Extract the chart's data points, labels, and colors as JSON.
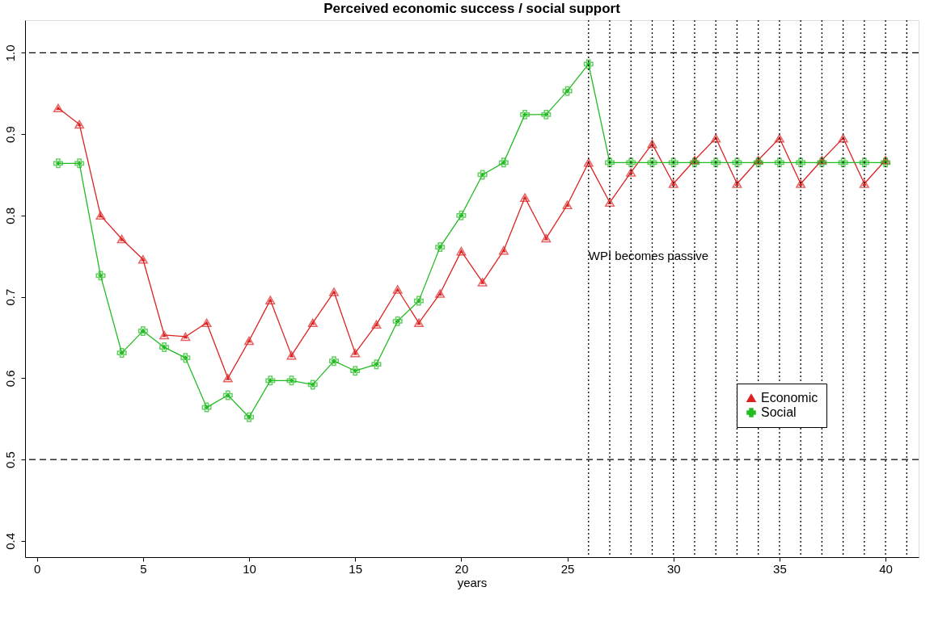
{
  "chart_data": {
    "type": "line",
    "title": "Perceived economic success / social support",
    "xlabel": "years",
    "x": [
      1,
      2,
      3,
      4,
      5,
      6,
      7,
      8,
      9,
      10,
      11,
      12,
      13,
      14,
      15,
      16,
      17,
      18,
      19,
      20,
      21,
      22,
      23,
      24,
      25,
      26,
      27,
      28,
      29,
      30,
      31,
      32,
      33,
      34,
      35,
      36,
      37,
      38,
      39,
      40
    ],
    "series": [
      {
        "name": "Economic",
        "color": "#dd2222",
        "marker": "triangle",
        "values": [
          0.932,
          0.912,
          0.8,
          0.771,
          0.746,
          0.653,
          0.651,
          0.668,
          0.6,
          0.646,
          0.696,
          0.628,
          0.668,
          0.706,
          0.631,
          0.666,
          0.709,
          0.668,
          0.704,
          0.756,
          0.718,
          0.757,
          0.822,
          0.772,
          0.813,
          0.865,
          0.816,
          0.853,
          0.888,
          0.839,
          0.868,
          0.895,
          0.839,
          0.868,
          0.895,
          0.839,
          0.868,
          0.895,
          0.839,
          0.868
        ]
      },
      {
        "name": "Social",
        "color": "#22bb22",
        "marker": "cross",
        "values": [
          0.864,
          0.864,
          0.726,
          0.631,
          0.658,
          0.638,
          0.625,
          0.564,
          0.579,
          0.552,
          0.597,
          0.597,
          0.592,
          0.621,
          0.609,
          0.617,
          0.67,
          0.695,
          0.761,
          0.8,
          0.85,
          0.865,
          0.924,
          0.924,
          0.953,
          0.986,
          0.865,
          0.865,
          0.865,
          0.865,
          0.865,
          0.865,
          0.865,
          0.865,
          0.865,
          0.865,
          0.865,
          0.865,
          0.865,
          0.865
        ]
      }
    ],
    "xlim": [
      -0.56,
      41.56
    ],
    "ylim": [
      0.38,
      1.04
    ],
    "xticks": [
      0,
      5,
      10,
      15,
      20,
      25,
      30,
      35,
      40
    ],
    "yticks": [
      0.4,
      0.5,
      0.6,
      0.7,
      0.8,
      0.9,
      {
        "value": 1,
        "label": "1.0"
      }
    ],
    "ref_lines": [
      {
        "axis": "y",
        "value": 1.0,
        "line_style": "dashed"
      },
      {
        "axis": "y",
        "value": 0.5,
        "line_style": "dashed"
      },
      {
        "axis": "x",
        "value": 26,
        "line_style": "dotted"
      },
      {
        "axis": "x",
        "value": 27,
        "line_style": "dotted"
      },
      {
        "axis": "x",
        "value": 28,
        "line_style": "dotted"
      },
      {
        "axis": "x",
        "value": 29,
        "line_style": "dotted"
      },
      {
        "axis": "x",
        "value": 30,
        "line_style": "dotted"
      },
      {
        "axis": "x",
        "value": 31,
        "line_style": "dotted"
      },
      {
        "axis": "x",
        "value": 32,
        "line_style": "dotted"
      },
      {
        "axis": "x",
        "value": 33,
        "line_style": "dotted"
      },
      {
        "axis": "x",
        "value": 34,
        "line_style": "dotted"
      },
      {
        "axis": "x",
        "value": 35,
        "line_style": "dotted"
      },
      {
        "axis": "x",
        "value": 36,
        "line_style": "dotted"
      },
      {
        "axis": "x",
        "value": 37,
        "line_style": "dotted"
      },
      {
        "axis": "x",
        "value": 38,
        "line_style": "dotted"
      },
      {
        "axis": "x",
        "value": 39,
        "line_style": "dotted"
      },
      {
        "axis": "x",
        "value": 40,
        "line_style": "dotted"
      },
      {
        "axis": "x",
        "value": 41,
        "line_style": "dotted"
      }
    ],
    "annotations": [
      {
        "text": "WPI becomes passive",
        "x": 26,
        "y": 0.75
      }
    ],
    "legend": "bottom right",
    "grid": false,
    "line_style": "solid"
  }
}
